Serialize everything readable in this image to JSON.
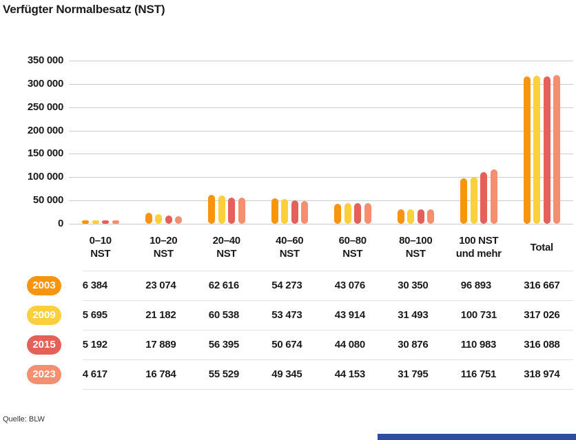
{
  "title": "Verfügter Normalbesatz (NST)",
  "source": "Quelle: BLW",
  "accent_bar_color": "#2d4e9e",
  "chart_data": {
    "type": "bar",
    "title": "Verfügter Normalbesatz (NST)",
    "xlabel": "",
    "ylabel": "",
    "ylim": [
      0,
      350000
    ],
    "grid": true,
    "legend_position": "table-row-badges",
    "ytick_values": [
      0,
      50000,
      100000,
      150000,
      200000,
      250000,
      300000,
      350000
    ],
    "ytick_labels": [
      "0",
      "50 000",
      "100 000",
      "150 000",
      "200 000",
      "250 000",
      "300 000",
      "350 000"
    ],
    "categories": [
      "0–10 NST",
      "10–20 NST",
      "20–40 NST",
      "40–60 NST",
      "60–80 NST",
      "80–100 NST",
      "100 NST und mehr",
      "Total"
    ],
    "category_label_lines": [
      [
        "0–10",
        "NST"
      ],
      [
        "10–20",
        "NST"
      ],
      [
        "20–40",
        "NST"
      ],
      [
        "40–60",
        "NST"
      ],
      [
        "60–80",
        "NST"
      ],
      [
        "80–100",
        "NST"
      ],
      [
        "100 NST",
        "und mehr"
      ],
      [
        "Total"
      ]
    ],
    "series": [
      {
        "name": "2003",
        "color": "#f8950f",
        "values": [
          6384,
          23074,
          62616,
          54273,
          43076,
          30350,
          96893,
          316667
        ]
      },
      {
        "name": "2009",
        "color": "#fcd03c",
        "values": [
          5695,
          21182,
          60538,
          53473,
          43914,
          31493,
          100731,
          317026
        ]
      },
      {
        "name": "2015",
        "color": "#e4615a",
        "values": [
          5192,
          17889,
          56395,
          50674,
          44080,
          30876,
          110983,
          316088
        ]
      },
      {
        "name": "2023",
        "color": "#f68e70",
        "values": [
          4617,
          16784,
          55529,
          49345,
          44153,
          31795,
          116751,
          318974
        ]
      }
    ]
  },
  "table": {
    "rows": [
      {
        "year": "2003",
        "color": "#f8950f",
        "values": [
          "6 384",
          "23 074",
          "62 616",
          "54 273",
          "43 076",
          "30 350",
          "96 893",
          "316 667"
        ]
      },
      {
        "year": "2009",
        "color": "#fcd03c",
        "values": [
          "5 695",
          "21 182",
          "60 538",
          "53 473",
          "43 914",
          "31 493",
          "100 731",
          "317 026"
        ]
      },
      {
        "year": "2015",
        "color": "#e4615a",
        "values": [
          "5 192",
          "17 889",
          "56 395",
          "50 674",
          "44 080",
          "30 876",
          "110 983",
          "316 088"
        ]
      },
      {
        "year": "2023",
        "color": "#f68e70",
        "values": [
          "4 617",
          "16 784",
          "55 529",
          "49 345",
          "44 153",
          "31 795",
          "116 751",
          "318 974"
        ]
      }
    ]
  }
}
